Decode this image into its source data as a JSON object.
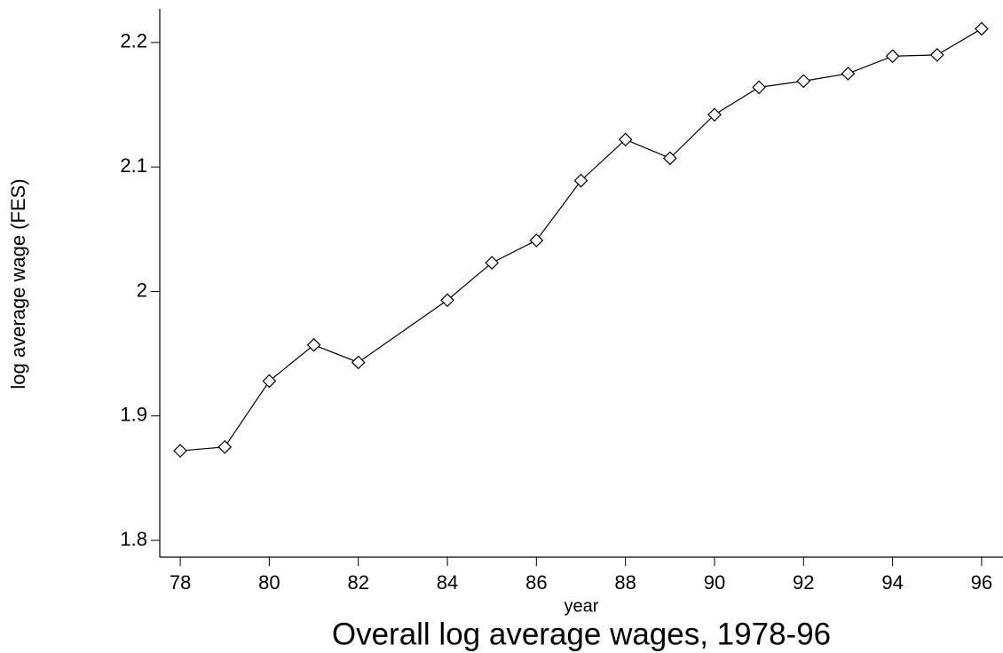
{
  "chart_data": {
    "type": "line",
    "title": "Overall log average wages, 1978-96",
    "xlabel": "year",
    "ylabel": "log average wage (FES)",
    "x": [
      78,
      79,
      80,
      81,
      82,
      84,
      85,
      86,
      87,
      88,
      89,
      90,
      91,
      92,
      93,
      94,
      95,
      96
    ],
    "series": [
      {
        "name": "log average wage",
        "color": "#000000",
        "marker": "diamond",
        "values": [
          1.872,
          1.875,
          1.928,
          1.957,
          1.943,
          1.993,
          2.023,
          2.041,
          2.089,
          2.122,
          2.107,
          2.142,
          2.164,
          2.169,
          2.175,
          2.189,
          2.19,
          2.211
        ]
      }
    ],
    "xlim": [
      77.54,
      96.48
    ],
    "ylim": [
      1.7865,
      2.227
    ],
    "xticks": [
      78,
      80,
      82,
      84,
      86,
      88,
      90,
      92,
      94,
      96
    ],
    "yticks": [
      1.8,
      1.9,
      2,
      2.1,
      2.2
    ],
    "grid": false
  }
}
